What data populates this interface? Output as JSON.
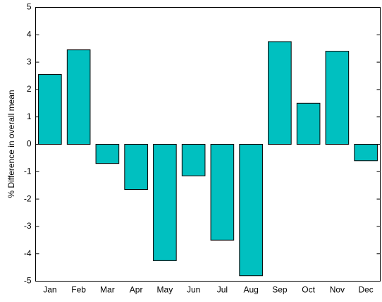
{
  "chart_data": {
    "type": "bar",
    "y_label": "% Difference in overall mean",
    "categories": [
      "Jan",
      "Feb",
      "Mar",
      "Apr",
      "May",
      "Jun",
      "Jul",
      "Aug",
      "Sep",
      "Oct",
      "Nov",
      "Dec"
    ],
    "values": [
      2.55,
      3.45,
      -0.7,
      -1.65,
      -4.25,
      -1.15,
      -3.5,
      -4.8,
      3.75,
      1.5,
      3.4,
      -0.6
    ],
    "color": "#00c0c0",
    "ylim": [
      -5,
      5
    ],
    "yticks": [
      -5,
      -4,
      -3,
      -2,
      -1,
      0,
      1,
      2,
      3,
      4,
      5
    ],
    "grid": false
  }
}
